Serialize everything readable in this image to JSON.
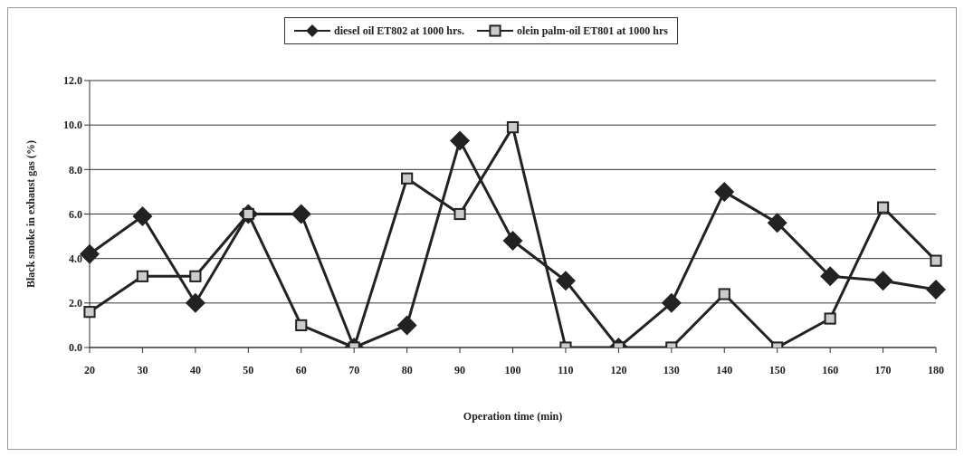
{
  "chart_data": {
    "type": "line",
    "xlabel": "Operation time (min)",
    "ylabel": "Black smoke in exhaust gas (%)",
    "categories": [
      "20",
      "30",
      "40",
      "50",
      "60",
      "70",
      "80",
      "90",
      "100",
      "110",
      "120",
      "130",
      "140",
      "150",
      "160",
      "170",
      "180"
    ],
    "series": [
      {
        "name": "diesel oil ET802 at 1000 hrs.",
        "color": "#222222",
        "marker": "diamond",
        "values": [
          4.2,
          5.9,
          2.0,
          6.0,
          6.0,
          0.0,
          1.0,
          9.3,
          4.8,
          3.0,
          0.0,
          2.0,
          7.0,
          5.6,
          3.2,
          3.0,
          2.6
        ]
      },
      {
        "name": "olein palm-oil ET801 at 1000 hrs",
        "color": "#222222",
        "marker": "square",
        "values": [
          1.6,
          3.2,
          3.2,
          6.0,
          1.0,
          0.0,
          7.6,
          6.0,
          9.9,
          0.0,
          0.0,
          0.0,
          2.4,
          0.0,
          1.3,
          6.3,
          3.9
        ]
      }
    ],
    "ylim": [
      0,
      12
    ],
    "yticks": [
      {
        "value": 0,
        "label": "0.0"
      },
      {
        "value": 2,
        "label": "2.0"
      },
      {
        "value": 4,
        "label": "4.0"
      },
      {
        "value": 6,
        "label": "6.0"
      },
      {
        "value": 8,
        "label": "8.0"
      },
      {
        "value": 10,
        "label": "10.0"
      },
      {
        "value": 12,
        "label": "12.0"
      }
    ],
    "grid": "y",
    "legend": "top",
    "line_style": "solid"
  }
}
